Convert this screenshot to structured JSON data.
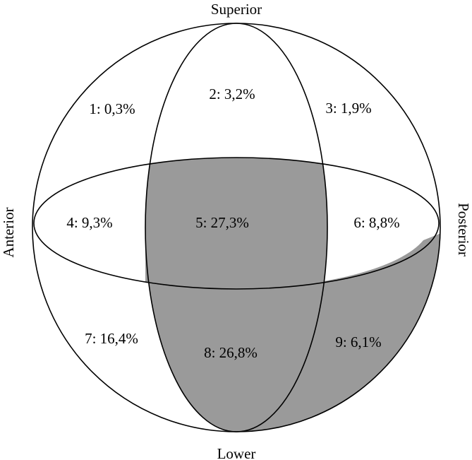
{
  "labels": {
    "top": "Superior",
    "bottom": "Lower",
    "left": "Anterior",
    "right": "Posterior"
  },
  "regions": [
    {
      "id": 1,
      "text": "1: 0,3%",
      "value": 0.3
    },
    {
      "id": 2,
      "text": "2: 3,2%",
      "value": 3.2
    },
    {
      "id": 3,
      "text": "3: 1,9%",
      "value": 1.9
    },
    {
      "id": 4,
      "text": "4: 9,3%",
      "value": 9.3
    },
    {
      "id": 5,
      "text": "5: 27,3%",
      "value": 27.3
    },
    {
      "id": 6,
      "text": "6: 8,8%",
      "value": 8.8
    },
    {
      "id": 7,
      "text": "7: 16,4%",
      "value": 16.4
    },
    {
      "id": 8,
      "text": "8: 26,8%",
      "value": 26.8
    },
    {
      "id": 9,
      "text": "9: 6,1%",
      "value": 6.1
    }
  ],
  "colors": {
    "shaded": "#9a9a9a",
    "outline": "#000000",
    "background": "#ffffff"
  },
  "shaded_regions": [
    5,
    8,
    9
  ]
}
